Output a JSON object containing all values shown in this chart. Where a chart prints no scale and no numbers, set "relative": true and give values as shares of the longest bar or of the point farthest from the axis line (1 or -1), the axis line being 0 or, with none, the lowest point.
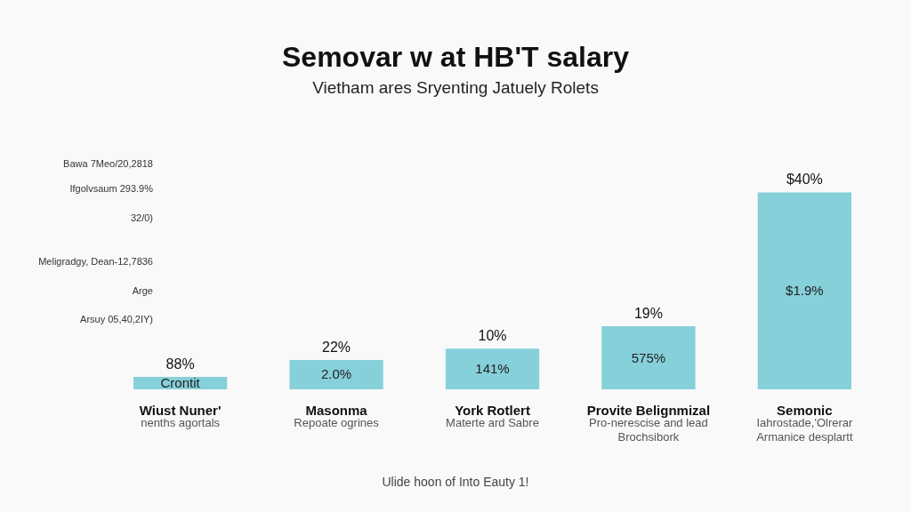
{
  "chart_data": {
    "type": "bar",
    "title": "Semovar w at HB'T salary",
    "subtitle": "Vietham ares Sryenting Jatuely Rolets",
    "relative": true,
    "color": "#86d0da",
    "categories": [
      "Wiust Nuner'",
      "Masonma",
      "York Rotlert",
      "Provite Belignmizal",
      "Semonic"
    ],
    "values": [
      0.063,
      0.149,
      0.207,
      0.32,
      1
    ],
    "annotations": [
      "88%",
      "22%",
      "10%",
      "19%",
      "$40%",
      "Crontit",
      "2.0%",
      "141%",
      "575%",
      "$1.9%",
      "nenths agortals",
      "Repoate ogrines",
      "Materte ard Sabre",
      "Pro-nerescise and lead\nBrochsibork",
      "Iahrostade,'Olrerar\nArmanice desplartt",
      "Bawa 7Meo/20,2818",
      "Ifgolvsaum 293.9%",
      "32/0)",
      "Meligradgy, Dean-12,7836",
      "Arge",
      "Arsuy 05,40,2IY)",
      "Ulide hoon of Into Eauty 1!"
    ]
  }
}
